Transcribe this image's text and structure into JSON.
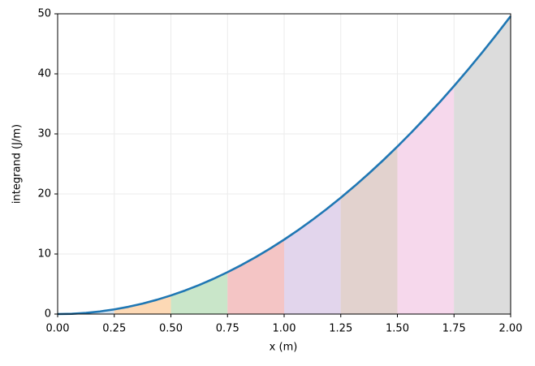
{
  "chart_data": {
    "type": "line",
    "xlabel": "x (m)",
    "ylabel": "integrand (J/m)",
    "x": [
      0,
      0.0625,
      0.125,
      0.1875,
      0.25,
      0.3125,
      0.375,
      0.4375,
      0.5,
      0.5625,
      0.625,
      0.6875,
      0.75,
      0.8125,
      0.875,
      0.9375,
      1,
      1.0625,
      1.125,
      1.1875,
      1.25,
      1.3125,
      1.375,
      1.4375,
      1.5,
      1.5625,
      1.625,
      1.6875,
      1.75,
      1.8125,
      1.875,
      1.9375,
      2
    ],
    "series": [
      {
        "color": "#1f77b4",
        "values": [
          0,
          0.048,
          0.194,
          0.436,
          0.775,
          1.211,
          1.744,
          2.373,
          3.1,
          3.923,
          4.844,
          5.861,
          6.975,
          8.186,
          9.494,
          10.898,
          12.4,
          13.998,
          15.694,
          17.486,
          19.375,
          21.361,
          23.444,
          25.623,
          27.9,
          30.273,
          32.744,
          35.311,
          37.975,
          40.736,
          43.594,
          46.548,
          49.6
        ]
      }
    ],
    "bands": [
      0,
      0.25,
      0.5,
      0.75,
      1,
      1.25,
      1.5,
      1.75,
      2
    ],
    "band_colors": [
      "#d2e1ee",
      "#fdd9b5",
      "#c9e6c9",
      "#f4c5c5",
      "#e2d5ec",
      "#e2d2ce",
      "#f6d8ec",
      "#dcdcdc"
    ],
    "xlim": [
      0,
      2
    ],
    "ylim": [
      0,
      50
    ],
    "xticks": [
      {
        "value": 0,
        "label": "0.00"
      },
      {
        "value": 0.25,
        "label": "0.25"
      },
      {
        "value": 0.5,
        "label": "0.50"
      },
      {
        "value": 0.75,
        "label": "0.75"
      },
      {
        "value": 1,
        "label": "1.00"
      },
      {
        "value": 1.25,
        "label": "1.25"
      },
      {
        "value": 1.5,
        "label": "1.50"
      },
      {
        "value": 1.75,
        "label": "1.75"
      },
      {
        "value": 2,
        "label": "2.00"
      }
    ],
    "yticks": [
      0,
      10,
      20,
      30,
      40,
      50
    ],
    "grid": true
  }
}
